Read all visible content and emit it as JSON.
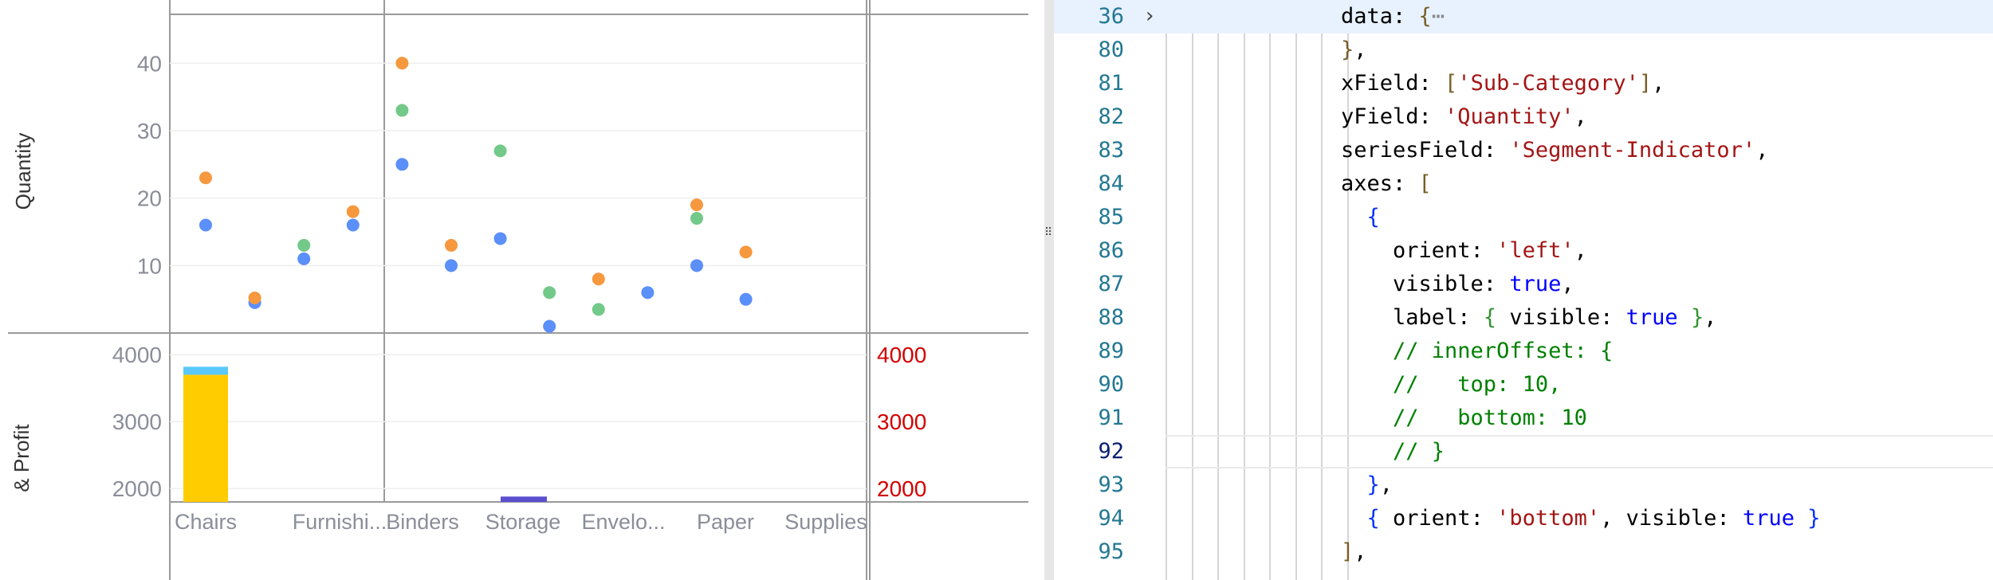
{
  "chart_data": [
    {
      "type": "scatter",
      "ylabel": "Quantity",
      "yticks": [
        10,
        20,
        30,
        40
      ],
      "ylim": [
        0,
        47
      ],
      "categories": [
        "Chairs",
        "Furnishi...",
        "Binders",
        "Storage",
        "Envelo...",
        "Paper",
        "Supplies"
      ],
      "grid": true,
      "series": [
        {
          "color": "#5b8ff9",
          "values": [
            {
              "x": 0,
              "y": 16
            },
            {
              "x": 0.7,
              "y": 4.5
            },
            {
              "x": 1.4,
              "y": 11
            },
            {
              "x": 2.1,
              "y": 16
            },
            {
              "x": 2.8,
              "y": 25
            },
            {
              "x": 3.5,
              "y": 10
            },
            {
              "x": 4.2,
              "y": 14
            },
            {
              "x": 4.9,
              "y": 1
            },
            {
              "x": 6.3,
              "y": 6
            },
            {
              "x": 7.0,
              "y": 10
            },
            {
              "x": 7.7,
              "y": 5
            }
          ]
        },
        {
          "color": "#f6983e",
          "values": [
            {
              "x": 0,
              "y": 23
            },
            {
              "x": 0.7,
              "y": 5.2
            },
            {
              "x": 2.1,
              "y": 18
            },
            {
              "x": 2.8,
              "y": 40
            },
            {
              "x": 3.5,
              "y": 13
            },
            {
              "x": 5.6,
              "y": 8
            },
            {
              "x": 7.0,
              "y": 19
            },
            {
              "x": 7.7,
              "y": 12
            }
          ]
        },
        {
          "color": "#73c989",
          "values": [
            {
              "x": 1.4,
              "y": 13
            },
            {
              "x": 2.8,
              "y": 33
            },
            {
              "x": 4.2,
              "y": 27
            },
            {
              "x": 4.9,
              "y": 6
            },
            {
              "x": 5.6,
              "y": 3.5
            },
            {
              "x": 7.0,
              "y": 17
            }
          ]
        }
      ]
    },
    {
      "type": "bar",
      "ylabel": "& Profit",
      "yticks_left": [
        2000,
        3000,
        4000
      ],
      "yticks_right": [
        2000,
        3000,
        4000
      ],
      "ylim": [
        1800,
        4300
      ],
      "categories": [
        "Chairs",
        "Furnishi...",
        "Binders",
        "Storage",
        "Envelo...",
        "Paper",
        "Supplies"
      ],
      "bars": [
        {
          "category": "Chairs",
          "base": 1800,
          "value": 3700,
          "color": "#ffcc00"
        },
        {
          "category": "Chairs",
          "base": 3700,
          "value": 3820,
          "color": "#5ac8fa"
        },
        {
          "category": "Storage",
          "base": 1800,
          "value": 1880,
          "color": "#5b4fcf"
        }
      ]
    }
  ],
  "editor": {
    "lines": [
      {
        "number": "36",
        "fold": "›",
        "active": true,
        "tokens": [
          {
            "t": "data: ",
            "c": "p"
          },
          {
            "t": "{",
            "c": "b1"
          },
          {
            "t": "⋯",
            "c": "fold"
          }
        ]
      },
      {
        "number": "80",
        "tokens": [
          {
            "t": "}",
            "c": "b1"
          },
          {
            "t": ",",
            "c": "p"
          }
        ]
      },
      {
        "number": "81",
        "tokens": [
          {
            "t": "xField: ",
            "c": "p"
          },
          {
            "t": "[",
            "c": "b1"
          },
          {
            "t": "'Sub-Category'",
            "c": "s"
          },
          {
            "t": "]",
            "c": "b1"
          },
          {
            "t": ",",
            "c": "p"
          }
        ]
      },
      {
        "number": "82",
        "tokens": [
          {
            "t": "yField: ",
            "c": "p"
          },
          {
            "t": "'Quantity'",
            "c": "s"
          },
          {
            "t": ",",
            "c": "p"
          }
        ]
      },
      {
        "number": "83",
        "tokens": [
          {
            "t": "seriesField: ",
            "c": "p"
          },
          {
            "t": "'Segment-Indicator'",
            "c": "s"
          },
          {
            "t": ",",
            "c": "p"
          }
        ]
      },
      {
        "number": "84",
        "tokens": [
          {
            "t": "axes: ",
            "c": "p"
          },
          {
            "t": "[",
            "c": "b1"
          }
        ]
      },
      {
        "number": "85",
        "tokens": [
          {
            "t": "  ",
            "c": "p"
          },
          {
            "t": "{",
            "c": "b2"
          }
        ]
      },
      {
        "number": "86",
        "tokens": [
          {
            "t": "    orient: ",
            "c": "p"
          },
          {
            "t": "'left'",
            "c": "s"
          },
          {
            "t": ",",
            "c": "p"
          }
        ]
      },
      {
        "number": "87",
        "tokens": [
          {
            "t": "    visible: ",
            "c": "p"
          },
          {
            "t": "true",
            "c": "kw"
          },
          {
            "t": ",",
            "c": "p"
          }
        ]
      },
      {
        "number": "88",
        "tokens": [
          {
            "t": "    label: ",
            "c": "p"
          },
          {
            "t": "{",
            "c": "b3"
          },
          {
            "t": " visible: ",
            "c": "p"
          },
          {
            "t": "true",
            "c": "kw"
          },
          {
            "t": " ",
            "c": "p"
          },
          {
            "t": "}",
            "c": "b3"
          },
          {
            "t": ",",
            "c": "p"
          }
        ]
      },
      {
        "number": "89",
        "tokens": [
          {
            "t": "    // innerOffset: {",
            "c": "c"
          }
        ]
      },
      {
        "number": "90",
        "tokens": [
          {
            "t": "    //   top: 10,",
            "c": "c"
          }
        ]
      },
      {
        "number": "91",
        "tokens": [
          {
            "t": "    //   bottom: 10",
            "c": "c"
          }
        ]
      },
      {
        "number": "92",
        "current": true,
        "tokens": [
          {
            "t": "    // }",
            "c": "c"
          }
        ]
      },
      {
        "number": "93",
        "tokens": [
          {
            "t": "  ",
            "c": "p"
          },
          {
            "t": "}",
            "c": "b2"
          },
          {
            "t": ",",
            "c": "p"
          }
        ]
      },
      {
        "number": "94",
        "tokens": [
          {
            "t": "  ",
            "c": "p"
          },
          {
            "t": "{",
            "c": "b2"
          },
          {
            "t": " orient: ",
            "c": "p"
          },
          {
            "t": "'bottom'",
            "c": "s"
          },
          {
            "t": ", visible: ",
            "c": "p"
          },
          {
            "t": "true",
            "c": "kw"
          },
          {
            "t": " ",
            "c": "p"
          },
          {
            "t": "}",
            "c": "b2"
          }
        ]
      },
      {
        "number": "95",
        "tokens": [
          {
            "t": "]",
            "c": "b1"
          },
          {
            "t": ",",
            "c": "p"
          }
        ]
      }
    ]
  },
  "splitter": {
    "grip_icon": "⠿"
  }
}
